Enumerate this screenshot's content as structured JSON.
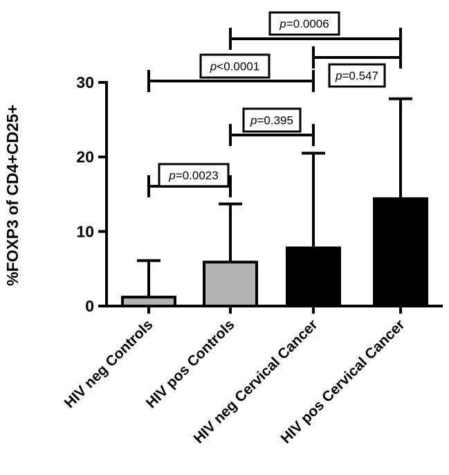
{
  "chart_data": {
    "type": "bar",
    "ylabel": "%FOXP3 of CD4+CD25+",
    "ylim": [
      0,
      30
    ],
    "yticks": [
      "0",
      "10",
      "20",
      "30"
    ],
    "categories": [
      "HIV neg Controls",
      "HIV pos Controls",
      "HIV neg Cervical Cancer",
      "HIV pos Cervical Cancer"
    ],
    "values": [
      1.2,
      5.9,
      7.8,
      14.4
    ],
    "error_upper": [
      6.1,
      13.7,
      20.5,
      27.8
    ],
    "bar_colors": [
      "#b3b3b3",
      "#b3b3b3",
      "#000000",
      "#000000"
    ],
    "comparisons": [
      {
        "pair": [
          1,
          2
        ],
        "symbol": "p",
        "text": "=0.0023"
      },
      {
        "pair": [
          2,
          3
        ],
        "symbol": "p",
        "text": "=0.395"
      },
      {
        "pair": [
          1,
          3
        ],
        "symbol": "p",
        "text": "<0.0001"
      },
      {
        "pair": [
          3,
          4
        ],
        "symbol": "p",
        "text": "=0.547"
      },
      {
        "pair": [
          2,
          4
        ],
        "symbol": "p",
        "text": "=0.0006"
      }
    ]
  }
}
